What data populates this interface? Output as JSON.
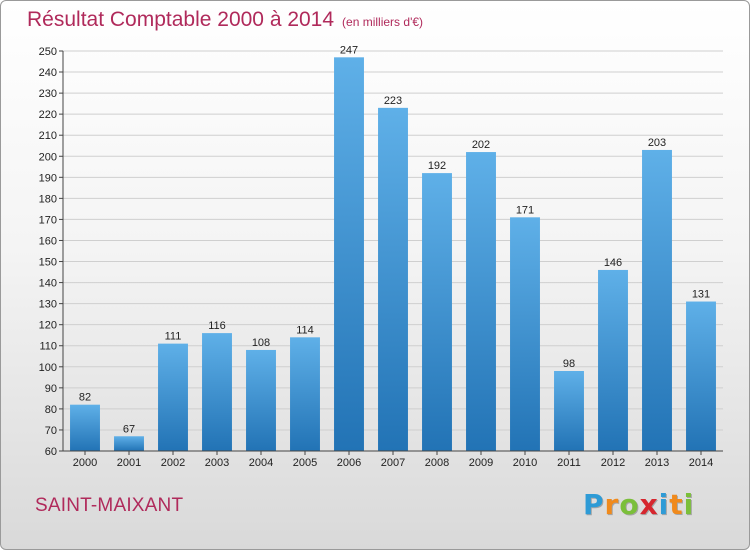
{
  "title": "Résultat Comptable 2000 à 2014",
  "unit_note": "(en milliers d'€)",
  "commune": "SAINT-MAIXANT",
  "logo": {
    "text": "Proxiti",
    "letters": [
      {
        "ch": "P",
        "color": "#2e9bd6"
      },
      {
        "ch": "r",
        "color": "#f08a1c"
      },
      {
        "ch": "o",
        "color": "#7bbf3a"
      },
      {
        "ch": "x",
        "color": "#d6262e"
      },
      {
        "ch": "i",
        "color": "#2e9bd6"
      },
      {
        "ch": "t",
        "color": "#f08a1c"
      },
      {
        "ch": "i",
        "color": "#7bbf3a"
      }
    ]
  },
  "colors": {
    "title": "#b02a5b",
    "bar_top": "#5fb0e8",
    "bar_bottom": "#2273b5",
    "grid": "#cfcfcf"
  },
  "chart_data": {
    "type": "bar",
    "categories": [
      "2000",
      "2001",
      "2002",
      "2003",
      "2004",
      "2005",
      "2006",
      "2007",
      "2008",
      "2009",
      "2010",
      "2011",
      "2012",
      "2013",
      "2014"
    ],
    "values": [
      82,
      67,
      111,
      116,
      108,
      114,
      247,
      223,
      192,
      202,
      171,
      98,
      146,
      203,
      131
    ],
    "title": "Résultat Comptable 2000 à 2014",
    "ylim": [
      60,
      250
    ],
    "yticks": [
      60,
      70,
      80,
      90,
      100,
      110,
      120,
      130,
      140,
      150,
      160,
      170,
      180,
      190,
      200,
      210,
      220,
      230,
      240,
      250
    ],
    "grid": true
  }
}
